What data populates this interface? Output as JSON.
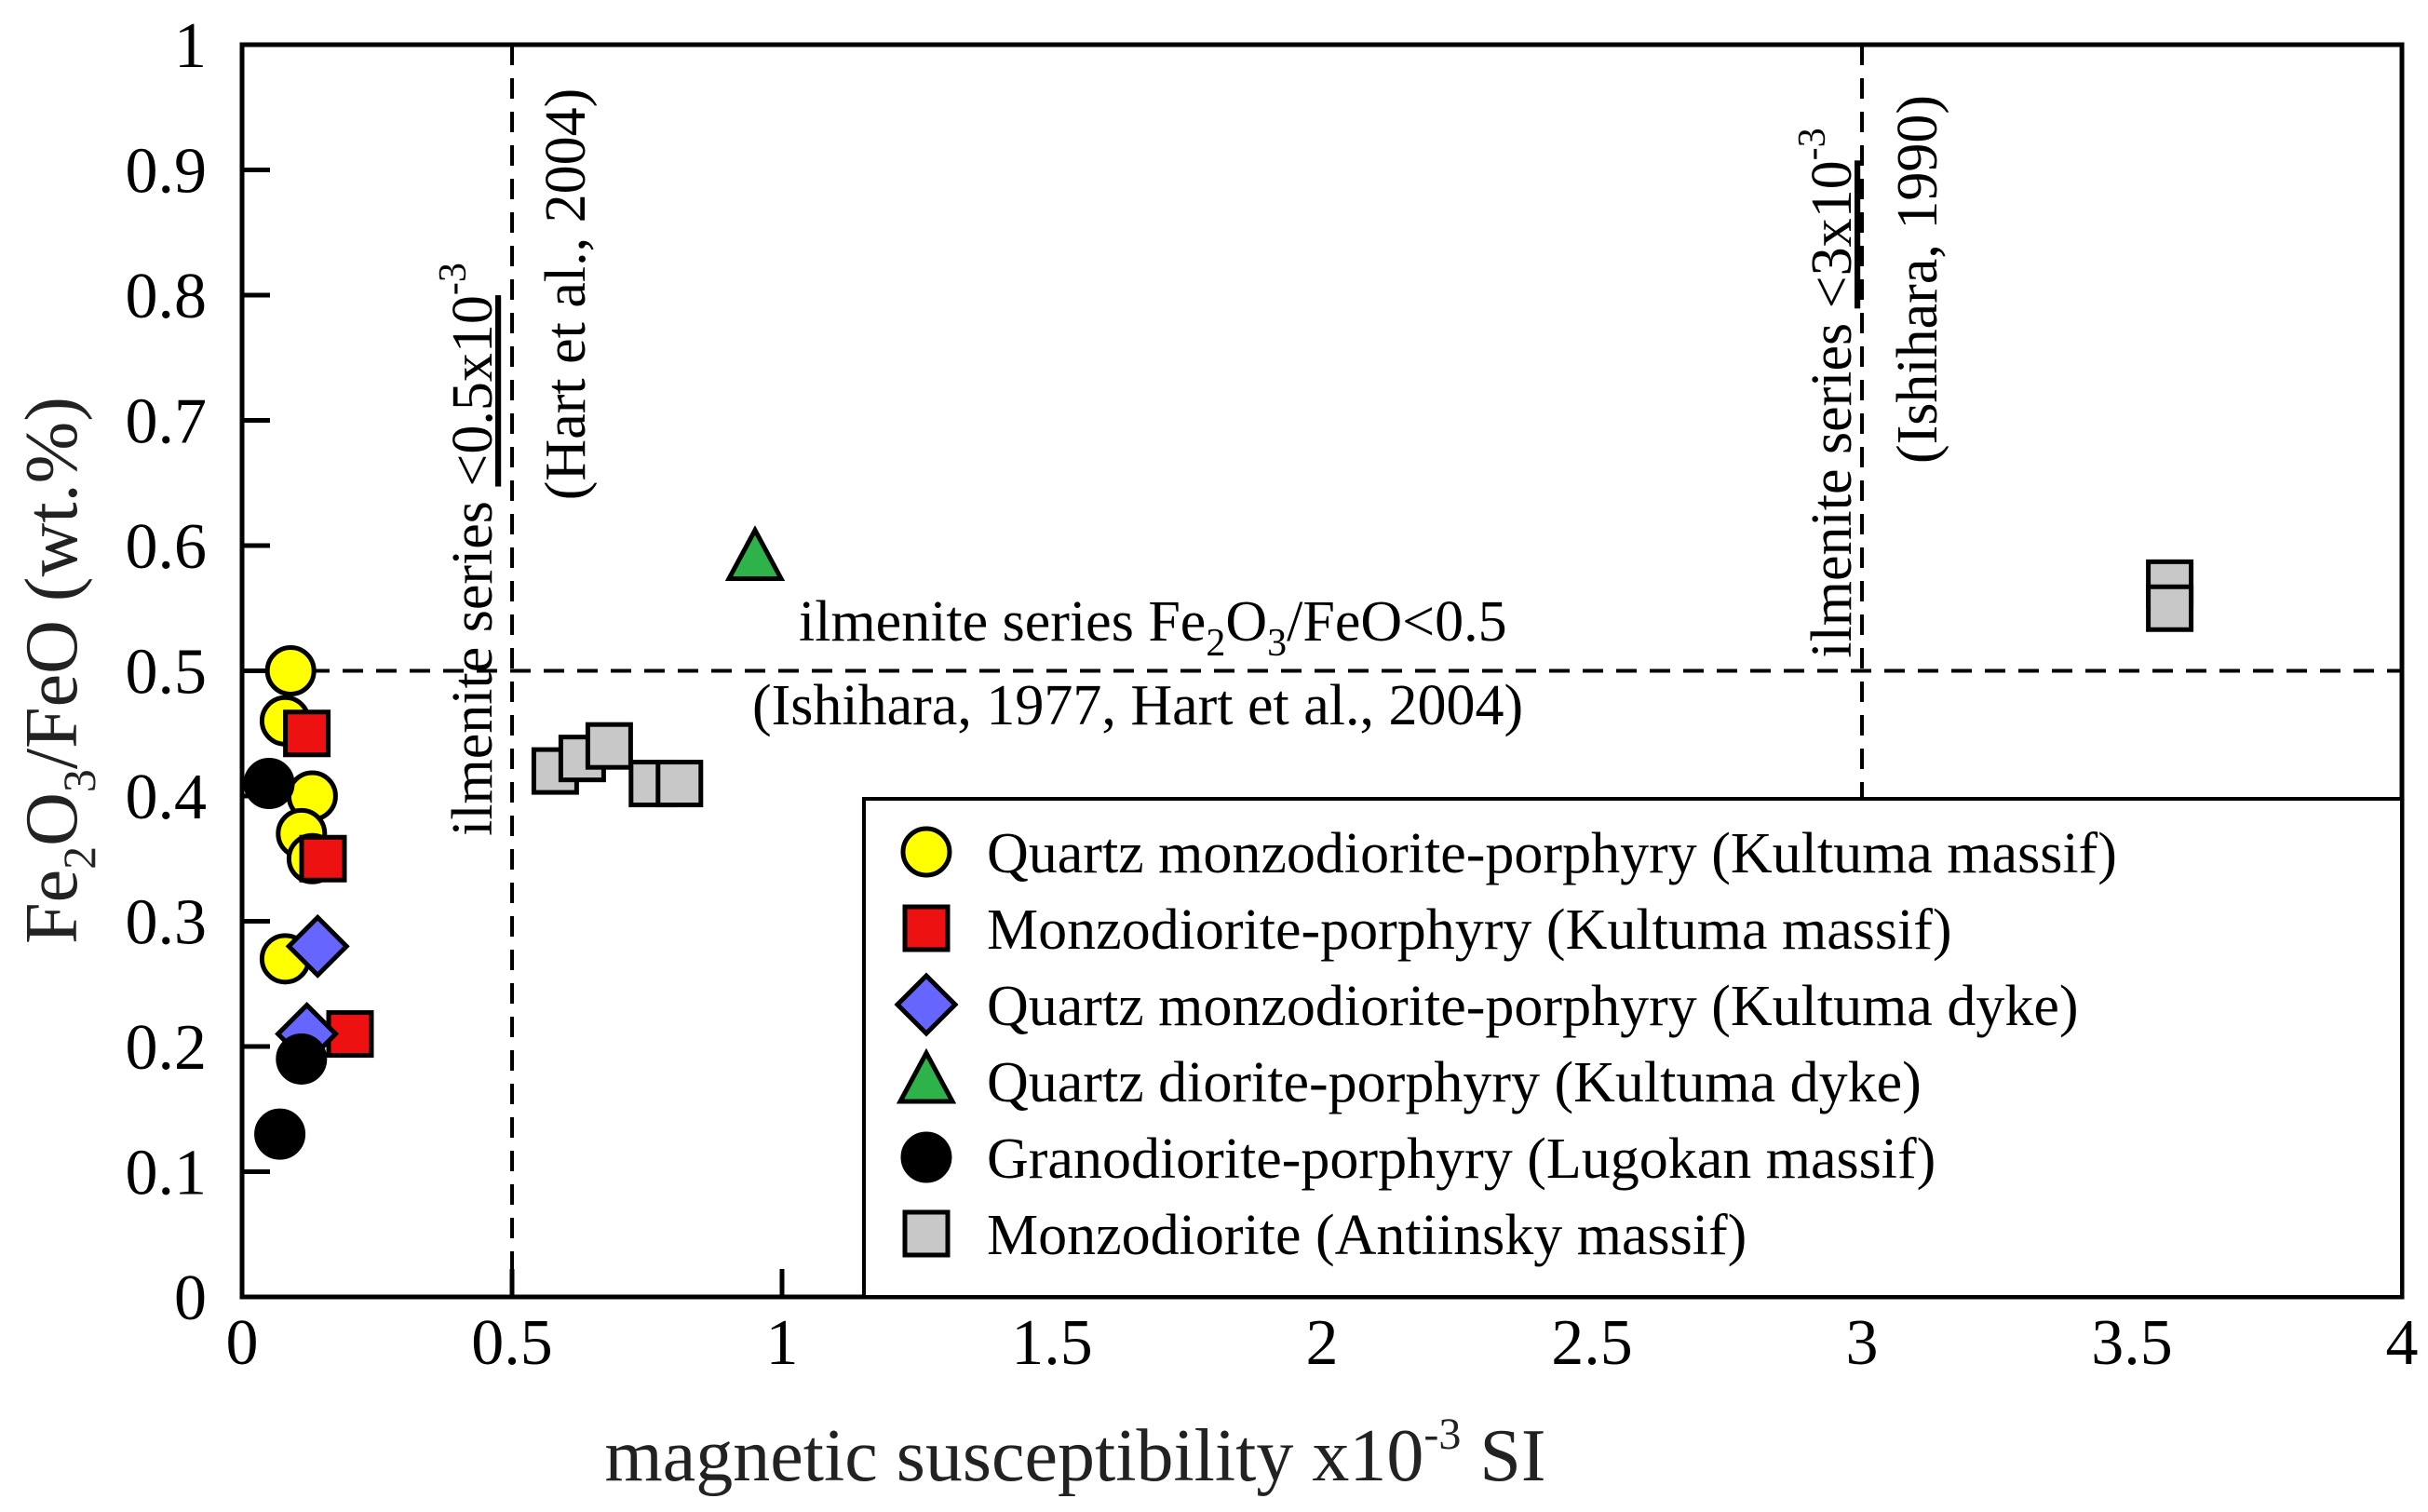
{
  "chart_data": {
    "type": "scatter",
    "xlabel_parts": [
      "magnetic susceptibility x10",
      "-3",
      " SI"
    ],
    "ylabel_parts": [
      "Fe",
      "2",
      "O",
      "3",
      "/FeO (wt.%)"
    ],
    "xlim": [
      0,
      4
    ],
    "ylim": [
      0,
      1
    ],
    "x_ticks": [
      0,
      0.5,
      1,
      1.5,
      2,
      2.5,
      3,
      3.5,
      4
    ],
    "x_tick_labels": [
      "0",
      "0.5",
      "1",
      "1.5",
      "2",
      "2.5",
      "3",
      "3.5",
      "4"
    ],
    "y_ticks": [
      0,
      0.1,
      0.2,
      0.3,
      0.4,
      0.5,
      0.6,
      0.7,
      0.8,
      0.9,
      1
    ],
    "y_tick_labels": [
      "0",
      "0.1",
      "0.2",
      "0.3",
      "0.4",
      "0.5",
      "0.6",
      "0.7",
      "0.8",
      "0.9",
      "1"
    ],
    "grid": false,
    "legend_position": "bottom-right",
    "reference_lines": [
      {
        "orientation": "vertical",
        "value": 0.5,
        "style": "dashed"
      },
      {
        "orientation": "vertical",
        "value": 3,
        "style": "dashed"
      },
      {
        "orientation": "horizontal",
        "value": 0.5,
        "style": "dashed"
      }
    ],
    "annotations": {
      "vline1": {
        "line1_a": "ilmenite series ",
        "line1_b": "<0.5x10",
        "line1_sup": "-3",
        "line2": "(Hart et al., 2004)"
      },
      "vline2": {
        "line1_a": "ilmenite series ",
        "line1_b": "<3x10",
        "line1_sup": "-3",
        "line2": "(Ishihara, 1990)"
      },
      "hline": {
        "line1_a": "ilmenite series Fe",
        "line1_s1": "2",
        "line1_b": "O",
        "line1_s2": "3",
        "line1_c": "/FeO<0.5",
        "line2": "(Ishihara, 1977, Hart et al., 2004)"
      }
    },
    "series": [
      {
        "name": "Quartz monzodiorite-porphyry (Kultuma massif)",
        "marker": "circle",
        "color": "#ffff00",
        "points": [
          [
            0.09,
            0.5
          ],
          [
            0.08,
            0.46
          ],
          [
            0.13,
            0.4
          ],
          [
            0.11,
            0.37
          ],
          [
            0.13,
            0.35
          ],
          [
            0.08,
            0.27
          ]
        ]
      },
      {
        "name": "Monzodiorite-porphyry (Kultuma massif)",
        "marker": "square",
        "color": "#ee1111",
        "points": [
          [
            0.12,
            0.45
          ],
          [
            0.15,
            0.35
          ],
          [
            0.2,
            0.21
          ]
        ]
      },
      {
        "name": "Quartz monzodiorite-porphyry (Kultuma dyke)",
        "marker": "diamond",
        "color": "#6666ff",
        "points": [
          [
            0.14,
            0.28
          ],
          [
            0.12,
            0.21
          ]
        ]
      },
      {
        "name": "Quartz diorite-porphyry (Kultuma dyke)",
        "marker": "triangle",
        "color": "#2db34a",
        "points": [
          [
            0.95,
            0.59
          ]
        ]
      },
      {
        "name": "Granodiorite-porphyry (Lugokan massif)",
        "marker": "circle",
        "color": "#000000",
        "points": [
          [
            0.05,
            0.41
          ],
          [
            0.11,
            0.19
          ],
          [
            0.07,
            0.13
          ]
        ]
      },
      {
        "name": "Monzodiorite (Antiinsky massif)",
        "marker": "square",
        "color": "#c8c8c8",
        "points": [
          [
            0.58,
            0.42
          ],
          [
            0.63,
            0.43
          ],
          [
            0.68,
            0.44
          ],
          [
            0.76,
            0.41
          ],
          [
            0.81,
            0.41
          ],
          [
            3.57,
            0.57
          ],
          [
            3.57,
            0.55
          ]
        ]
      }
    ]
  },
  "colors": {
    "marker_stroke": "#000000",
    "axis": "#000000",
    "title_text": "#222222"
  }
}
